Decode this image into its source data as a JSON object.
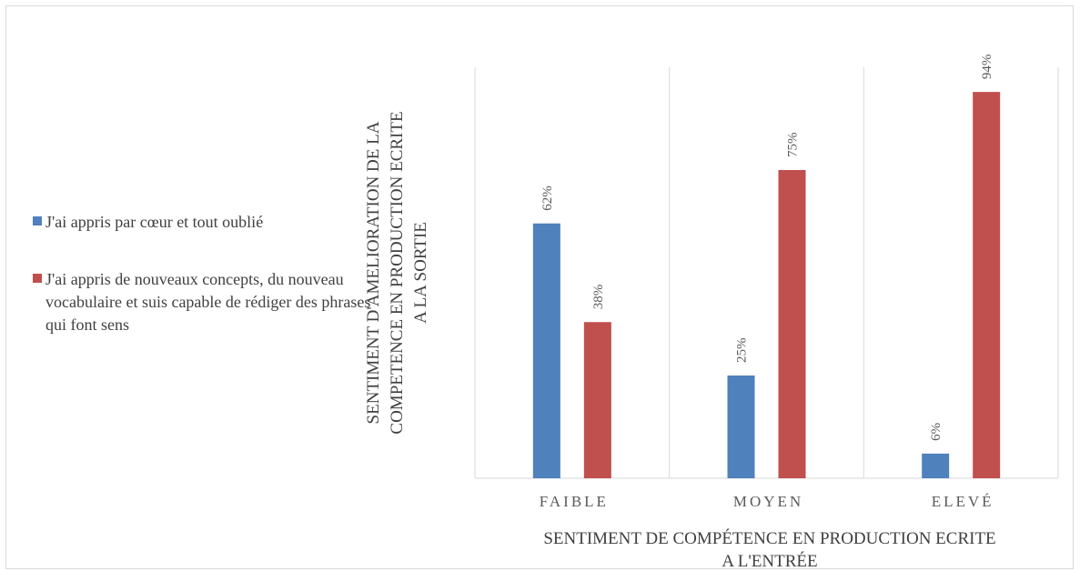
{
  "chart_data": {
    "type": "bar",
    "title": "",
    "xlabel": [
      "SENTIMENT DE COMPÉTENCE EN PRODUCTION ECRITE",
      "A L'ENTRÉE"
    ],
    "ylabel": [
      "SENTIMENT D'AMELIORATION DE LA",
      "COMPETENCE EN PRODUCTION ECRITE",
      "A LA SORTIE"
    ],
    "categories": [
      "FAIBLE",
      "MOYEN",
      "ELEVÉ"
    ],
    "series": [
      {
        "name": "J'ai appris par cœur et tout oublié",
        "values": [
          62,
          25,
          6
        ],
        "labels": [
          "62%",
          "25%",
          "6%"
        ],
        "color": "#4f81bd"
      },
      {
        "name": "J'ai appris de nouveaux concepts, du nouveau vocabulaire et suis capable de rédiger des phrases qui font sens",
        "values": [
          38,
          75,
          94
        ],
        "labels": [
          "38%",
          "75%",
          "94%"
        ],
        "color": "#c0504d"
      }
    ],
    "ylim": [
      0,
      100
    ],
    "grid": "vertical category separators",
    "legend_position": "left"
  }
}
